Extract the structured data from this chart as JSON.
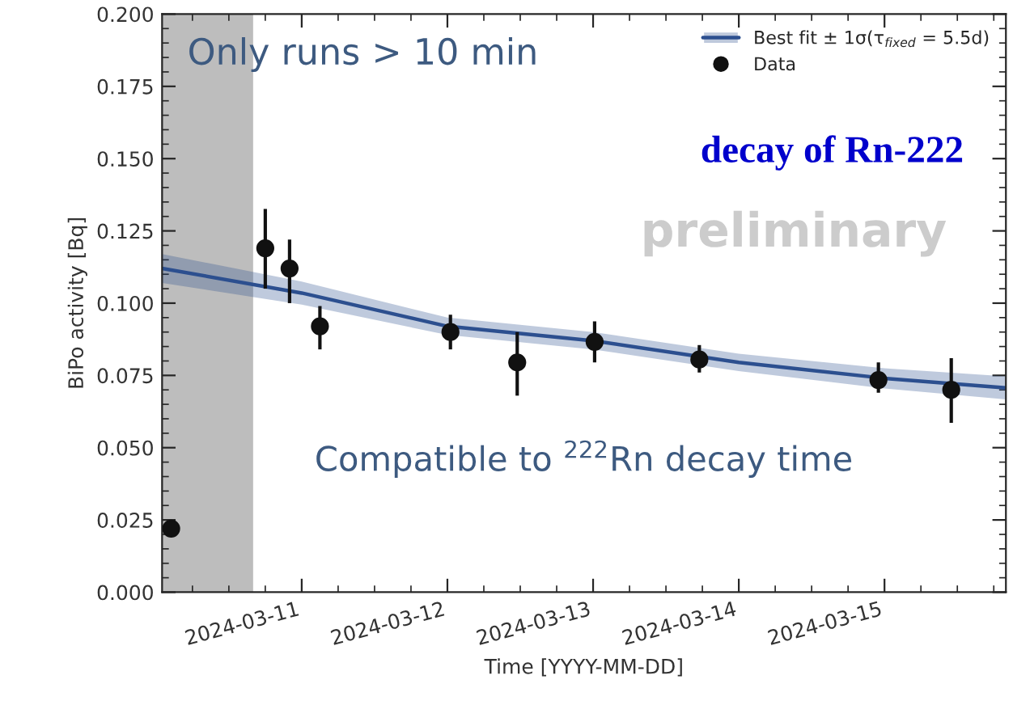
{
  "chart_data": {
    "type": "scatter",
    "xlabel": "Time [YYYY-MM-DD]",
    "ylabel": "BiPo activity [Bq]",
    "series": [
      {
        "name": "Best fit ± 1σ(τ$_{fixed}$ = 5.5d)",
        "type": "line",
        "color": "#2c4f8f",
        "marker": "none",
        "line_style": "solid",
        "x": [
          "2024-03-10T01:00",
          "2024-03-11",
          "2024-03-12",
          "2024-03-13",
          "2024-03-14",
          "2024-03-15",
          "2024-03-15T20:00"
        ],
        "values": [
          0.112,
          0.1035,
          0.092,
          0.087,
          0.0795,
          0.074,
          0.0707
        ],
        "lower": [
          0.107,
          0.0995,
          0.089,
          0.084,
          0.0765,
          0.0705,
          0.0667
        ],
        "upper": [
          0.117,
          0.1075,
          0.095,
          0.09,
          0.0825,
          0.0775,
          0.0747
        ]
      },
      {
        "name": "Data",
        "color": "#111111",
        "marker": "circle",
        "x": [
          "2024-03-10T02:30",
          "2024-03-10T18:00",
          "2024-03-10T22:00",
          "2024-03-11T03:00",
          "2024-03-12T00:30",
          "2024-03-12T11:30",
          "2024-03-13T00:15",
          "2024-03-13T17:30",
          "2024-03-14T23:00",
          "2024-03-15T11:00"
        ],
        "values": [
          0.022,
          0.119,
          0.112,
          0.092,
          0.09,
          0.0795,
          0.0866,
          0.0805,
          0.0734,
          0.07
        ],
        "errors": [
          0.002,
          [
            0.105,
            0.1326
          ],
          [
            0.1,
            0.122
          ],
          [
            0.084,
            0.099
          ],
          [
            0.084,
            0.096
          ],
          [
            0.068,
            0.09
          ],
          [
            0.0795,
            0.0937
          ],
          [
            0.076,
            0.0855
          ],
          [
            0.069,
            0.0795
          ],
          [
            0.0586,
            0.081
          ]
        ]
      }
    ],
    "xlim": [
      "2024-03-10T01:00",
      "2024-03-15T20:00"
    ],
    "xticks": [
      "2024-03-11",
      "2024-03-12",
      "2024-03-13",
      "2024-03-14",
      "2024-03-15"
    ],
    "ylim": [
      0,
      0.2
    ],
    "yticks": [
      {
        "value": 0,
        "label": "0.000"
      },
      {
        "value": 0.025,
        "label": "0.025"
      },
      {
        "value": 0.05,
        "label": "0.050"
      },
      {
        "value": 0.075,
        "label": "0.075"
      },
      {
        "value": 0.1,
        "label": "0.100"
      },
      {
        "value": 0.125,
        "label": "0.125"
      },
      {
        "value": 0.15,
        "label": "0.150"
      },
      {
        "value": 0.175,
        "label": "0.175"
      },
      {
        "value": 0.2,
        "label": "0.200"
      }
    ],
    "bands": [
      {
        "axis": "x",
        "from": "2024-03-10T01:00",
        "to": "2024-03-10T16:00",
        "color": "#bdbdbd"
      }
    ],
    "annotations": [
      "Only runs > 10 min",
      "Compatible to $^{222}$Rn decay time",
      "decay of Rn-222",
      "preliminary"
    ],
    "legend": "top right",
    "grid": false
  }
}
